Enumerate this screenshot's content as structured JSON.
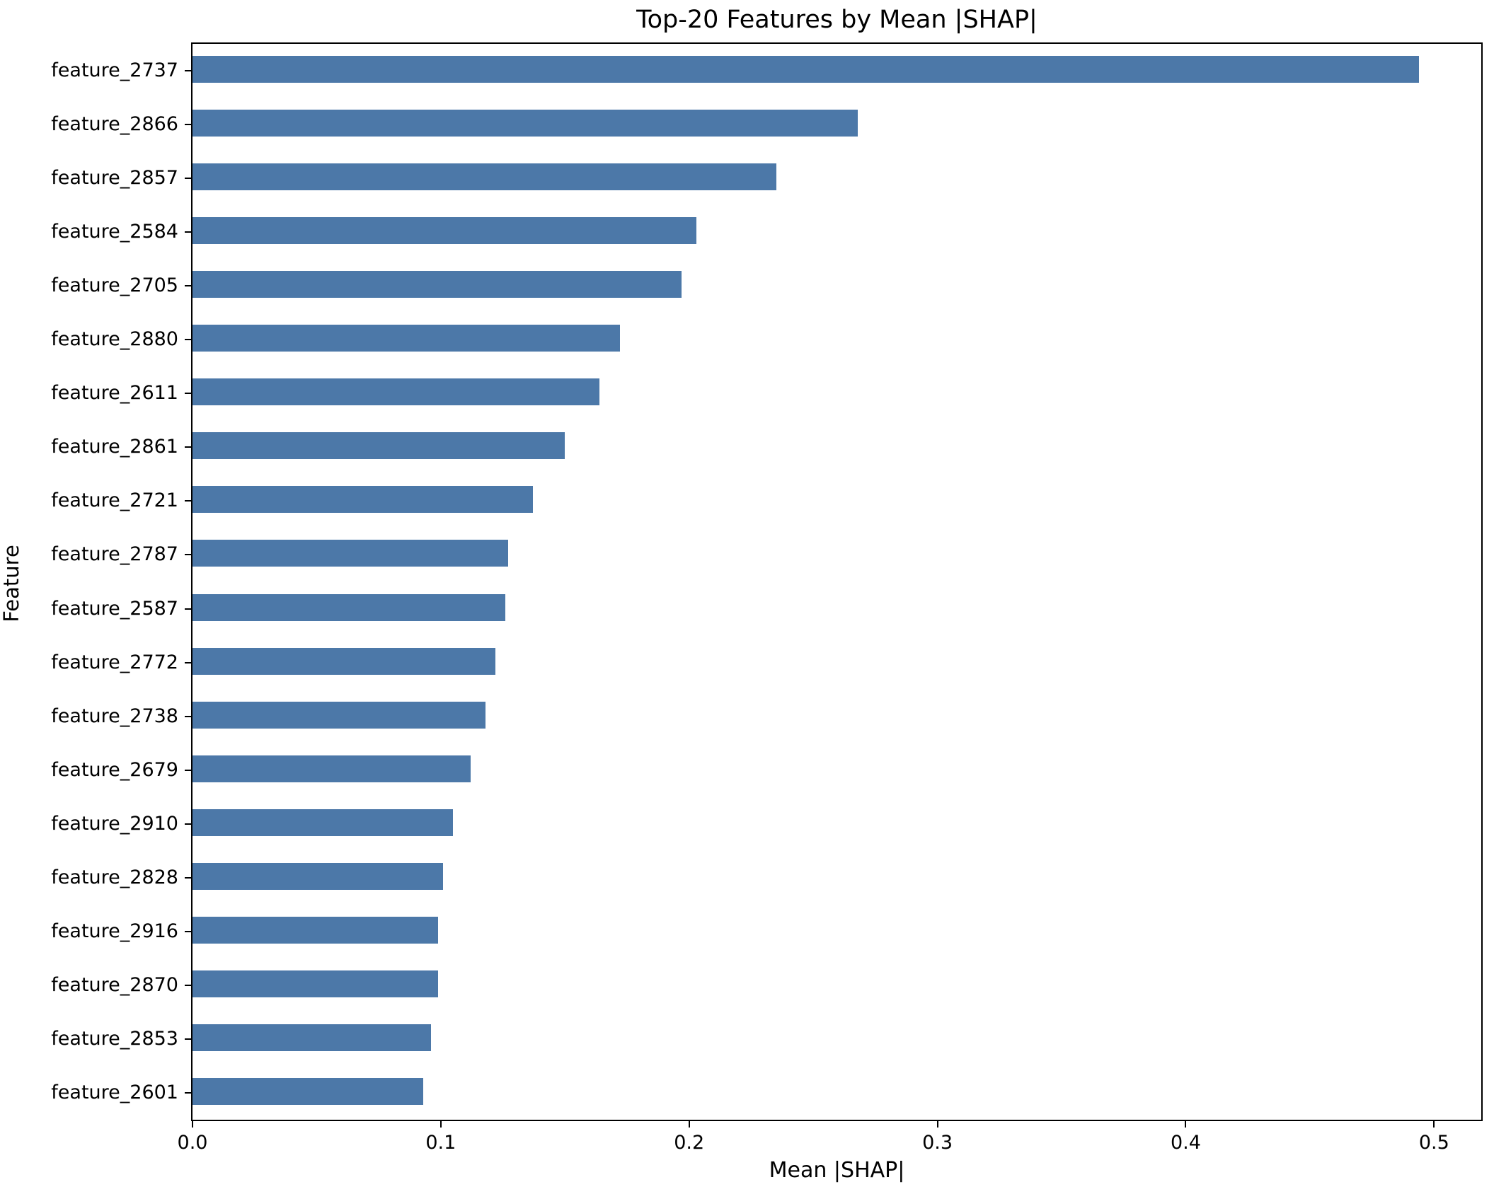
{
  "chart_data": {
    "type": "bar",
    "orientation": "horizontal",
    "title": "Top-20 Features by Mean |SHAP|",
    "xlabel": "Mean |SHAP|",
    "ylabel": "Feature",
    "categories": [
      "feature_2737",
      "feature_2866",
      "feature_2857",
      "feature_2584",
      "feature_2705",
      "feature_2880",
      "feature_2611",
      "feature_2861",
      "feature_2721",
      "feature_2787",
      "feature_2587",
      "feature_2772",
      "feature_2738",
      "feature_2679",
      "feature_2910",
      "feature_2828",
      "feature_2916",
      "feature_2870",
      "feature_2853",
      "feature_2601"
    ],
    "values": [
      0.494,
      0.268,
      0.235,
      0.203,
      0.197,
      0.172,
      0.164,
      0.15,
      0.137,
      0.127,
      0.126,
      0.122,
      0.118,
      0.112,
      0.105,
      0.101,
      0.099,
      0.099,
      0.096,
      0.093
    ],
    "xlim": [
      0,
      0.519
    ],
    "xticks": [
      0.0,
      0.1,
      0.2,
      0.3,
      0.4,
      0.5
    ],
    "xtick_labels": [
      "0.0",
      "0.1",
      "0.2",
      "0.3",
      "0.4",
      "0.5"
    ],
    "grid": false,
    "legend_position": "none",
    "bar_color": "#4C78A8",
    "spine_color": "#000000",
    "text_color": "#000000"
  }
}
